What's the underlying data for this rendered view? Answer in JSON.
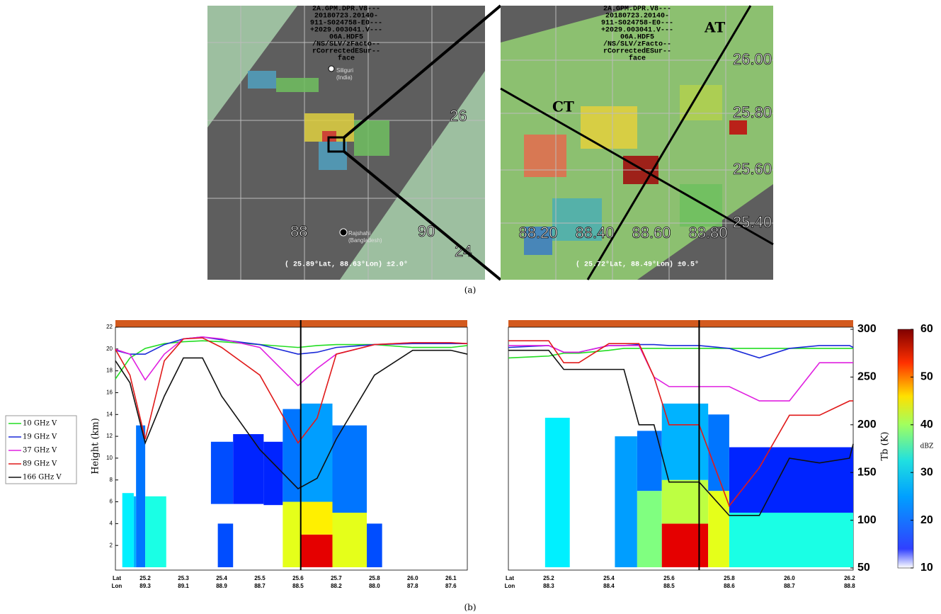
{
  "panel_a": {
    "header_lines": [
      "2A.GPM.DPR.V8---",
      "20180723.20140-",
      "911-S024758-E0---",
      "+2029.003041.V---",
      "06A.HDF5",
      "/NS/SLV/zFacto--",
      "rCorrectedESur--",
      "face"
    ],
    "left_map": {
      "lat_label": "26",
      "lat_label_2": "24",
      "lon_labels": [
        "88",
        "90"
      ],
      "cities": [
        "Siliguri",
        "(India)",
        "Rajshahi",
        "(Bangladesh)"
      ],
      "center": "( 25.89°Lat, 88.63°Lon) ±2.0°"
    },
    "right_map": {
      "lat_labels": [
        "26.00",
        "25.80",
        "25.60",
        "25.40"
      ],
      "lon_labels": [
        "88.20",
        "88.40",
        "88.60",
        "88.80"
      ],
      "track_labels": [
        "AT",
        "CT"
      ],
      "center": "( 25.72°Lat, 88.49°Lon) ±0.5°"
    },
    "caption": "(a)"
  },
  "caption_b": "(b)",
  "colorbar": {
    "label": "dBZ",
    "range": [
      10,
      60
    ],
    "ticks": [
      10,
      20,
      30,
      40,
      50,
      60
    ]
  },
  "chart_data": [
    {
      "type": "line",
      "y_label": "Height (km)",
      "x_row_labels": [
        "Lat",
        "Lon"
      ],
      "categories": [
        "25.2",
        "25.3",
        "25.4",
        "25.5",
        "25.6",
        "25.7",
        "25.8",
        "26.0",
        "26.1"
      ],
      "categories_lon": [
        "89.3",
        "89.1",
        "88.9",
        "88.7",
        "88.5",
        "88.2",
        "88.0",
        "87.8",
        "87.6"
      ],
      "xlim": [
        -0.78,
        8.43
      ],
      "ylim": [
        0,
        22
      ],
      "yticks": [
        2,
        4,
        6,
        8,
        10,
        12,
        14,
        16,
        18,
        20,
        22
      ],
      "y2lim": [
        50,
        300
      ],
      "vline": 4.07,
      "x": [
        -0.78,
        -0.4,
        0,
        0.5,
        1,
        1.5,
        2,
        3,
        4,
        4.5,
        5,
        6,
        7,
        8,
        8.43
      ],
      "series": [
        {
          "name": "10 GHz V",
          "color": "#22dd22",
          "values": [
            248,
            270,
            280,
            285,
            287,
            288,
            287,
            284,
            281,
            283,
            284,
            284,
            281,
            281,
            283
          ]
        },
        {
          "name": "19 GHz V",
          "color": "#1a2ad8",
          "values": [
            278,
            274,
            274,
            284,
            290,
            292,
            289,
            284,
            274,
            276,
            281,
            284,
            285,
            285,
            285
          ]
        },
        {
          "name": "37 GHz V",
          "color": "#e020e0",
          "values": [
            279,
            274,
            247,
            274,
            290,
            292,
            290,
            281,
            241,
            259,
            274,
            284,
            286,
            286,
            285
          ]
        },
        {
          "name": "89 GHz V",
          "color": "#e01a1a",
          "values": [
            279,
            252,
            185,
            267,
            290,
            291,
            281,
            252,
            181,
            207,
            274,
            284,
            286,
            286,
            285
          ]
        },
        {
          "name": "166 GHz V",
          "color": "#111111",
          "values": [
            267,
            244,
            181,
            230,
            270,
            270,
            230,
            174,
            133,
            144,
            185,
            252,
            278,
            278,
            274
          ]
        }
      ],
      "reflectivity": [
        [
          -0.6,
          -0.3,
          0,
          6.8,
          28
        ],
        [
          -0.3,
          -0.24,
          0,
          6.5,
          25
        ],
        [
          -0.24,
          0,
          0,
          13,
          22
        ],
        [
          0,
          0.55,
          0,
          6.5,
          30
        ],
        [
          1.72,
          2.3,
          5.8,
          11.5,
          20
        ],
        [
          2.3,
          3.1,
          5.8,
          12.2,
          18
        ],
        [
          3.1,
          3.6,
          5.7,
          11.5,
          18
        ],
        [
          1.9,
          2.3,
          0,
          4,
          20
        ],
        [
          3.6,
          4.07,
          0,
          6,
          40
        ],
        [
          3.6,
          4.07,
          6,
          14.5,
          22
        ],
        [
          4.07,
          4.9,
          0,
          3,
          55
        ],
        [
          4.07,
          4.9,
          3,
          6,
          42
        ],
        [
          4.07,
          4.9,
          6,
          15,
          24
        ],
        [
          4.9,
          5.8,
          0,
          5,
          40
        ],
        [
          4.9,
          5.8,
          5,
          13,
          22
        ],
        [
          5.8,
          6.2,
          0,
          4,
          20
        ]
      ]
    },
    {
      "type": "line",
      "y2_label": "Tb (K)",
      "x_row_labels": [
        "Lat",
        "Lon"
      ],
      "categories": [
        "25.2",
        "25.4",
        "25.6",
        "25.8",
        "26.0",
        "26.2"
      ],
      "categories_lon": [
        "88.3",
        "88.4",
        "88.5",
        "88.6",
        "88.7",
        "88.8"
      ],
      "xlim": [
        -0.67,
        5.06
      ],
      "ylim": [
        0,
        22
      ],
      "y2lim": [
        50,
        300
      ],
      "y2ticks": [
        50,
        100,
        150,
        200,
        250,
        300
      ],
      "vline": 2.5,
      "x": [
        -0.67,
        0,
        0.25,
        0.5,
        1,
        1.25,
        1.5,
        1.75,
        2,
        2.25,
        2.5,
        3,
        3.5,
        4,
        4.5,
        5,
        5.06
      ],
      "series": [
        {
          "name": "10 GHz V",
          "color": "#22dd22",
          "values": [
            270,
            272,
            275,
            275,
            278,
            280,
            280,
            280,
            280,
            280,
            280,
            280,
            280,
            280,
            280,
            280,
            280
          ]
        },
        {
          "name": "19 GHz V",
          "color": "#1a2ad8",
          "values": [
            281,
            283,
            276,
            276,
            283,
            283,
            284,
            284,
            283,
            283,
            283,
            280,
            270,
            280,
            283,
            283,
            281
          ]
        },
        {
          "name": "37 GHz V",
          "color": "#e020e0",
          "values": [
            283,
            283,
            276,
            276,
            283,
            283,
            283,
            250,
            240,
            240,
            240,
            240,
            225,
            225,
            265,
            265,
            265
          ]
        },
        {
          "name": "89 GHz V",
          "color": "#e01a1a",
          "values": [
            288,
            288,
            265,
            265,
            285,
            285,
            285,
            250,
            200,
            200,
            200,
            115,
            155,
            210,
            210,
            225,
            225
          ]
        },
        {
          "name": "166 GHz V",
          "color": "#111111",
          "values": [
            278,
            278,
            258,
            258,
            258,
            258,
            200,
            200,
            140,
            140,
            140,
            105,
            105,
            165,
            160,
            165,
            180
          ]
        }
      ],
      "reflectivity": [
        [
          -0.06,
          0.35,
          0,
          13.7,
          28
        ],
        [
          1.1,
          1.47,
          0,
          12,
          24
        ],
        [
          1.47,
          1.88,
          0,
          7,
          35
        ],
        [
          1.47,
          1.88,
          7,
          12.5,
          22
        ],
        [
          1.88,
          2.65,
          0,
          4,
          55
        ],
        [
          1.88,
          2.65,
          4,
          8,
          38
        ],
        [
          1.88,
          2.65,
          8,
          15,
          25
        ],
        [
          2.65,
          3,
          0,
          7,
          40
        ],
        [
          2.65,
          3,
          7,
          14,
          22
        ],
        [
          3,
          5.06,
          0,
          5,
          30
        ],
        [
          3,
          5.06,
          5,
          11,
          18
        ]
      ]
    }
  ]
}
